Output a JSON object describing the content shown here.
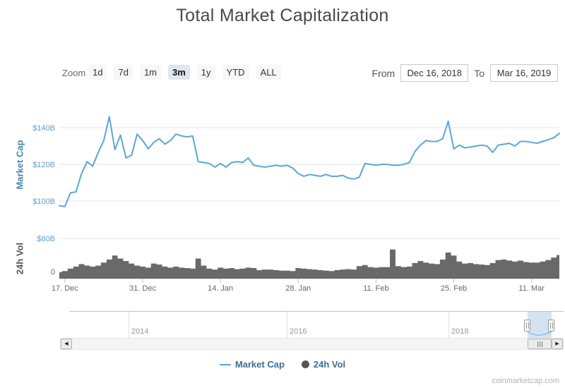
{
  "title": "Total Market Capitalization",
  "toolbar": {
    "zoom_label": "Zoom",
    "ranges": [
      {
        "label": "1d",
        "selected": false
      },
      {
        "label": "7d",
        "selected": false
      },
      {
        "label": "1m",
        "selected": false
      },
      {
        "label": "3m",
        "selected": true
      },
      {
        "label": "1y",
        "selected": false
      },
      {
        "label": "YTD",
        "selected": false
      },
      {
        "label": "ALL",
        "selected": false
      }
    ],
    "from_label": "From",
    "from_value": "Dec 16, 2018",
    "to_label": "To",
    "to_value": "Mar 16, 2019"
  },
  "axes": {
    "marketcap_title": "Market Cap",
    "volume_title": "24h Vol"
  },
  "legend": [
    {
      "label": "Market Cap",
      "marker": "line",
      "color": "#58a7d9"
    },
    {
      "label": "24h Vol",
      "marker": "circle",
      "color": "#555555"
    }
  ],
  "navigator": {
    "years": [
      {
        "label": "2014"
      },
      {
        "label": "2016"
      },
      {
        "label": "2018"
      }
    ]
  },
  "watermark": "coinmarketcap.com",
  "colors": {
    "line": "#58a7d9",
    "volume": "#696969",
    "grid": "#e6e6e6",
    "axis_line": "#d0d0d0",
    "tick": "#c0c0c0",
    "x_label": "#666666",
    "y_label_blue": "#5e9fc7",
    "y_label_gray": "#666666"
  },
  "chart_data": {
    "type": "line",
    "title": "Total Market Capitalization",
    "x_unit": "day",
    "start_date": "2018-12-16",
    "end_date": "2019-03-16",
    "x_ticks": [
      {
        "label": "17. Dec",
        "day": 1
      },
      {
        "label": "31. Dec",
        "day": 15
      },
      {
        "label": "14. Jan",
        "day": 29
      },
      {
        "label": "28. Jan",
        "day": 43
      },
      {
        "label": "11. Feb",
        "day": 57
      },
      {
        "label": "25. Feb",
        "day": 71
      },
      {
        "label": "11. Mar",
        "day": 85
      }
    ],
    "marketcap_axis": {
      "ticks": [
        {
          "label": "$140B",
          "value": 140
        },
        {
          "label": "$120B",
          "value": 120
        },
        {
          "label": "$100B",
          "value": 100
        }
      ],
      "range": [
        95,
        150
      ]
    },
    "volume_axis": {
      "ticks": [
        {
          "label": "$80B",
          "value": 80
        },
        {
          "label": "0",
          "value": 0
        }
      ],
      "range": [
        0,
        80
      ]
    },
    "series": [
      {
        "name": "Market Cap",
        "type": "line",
        "unit": "billion USD",
        "color": "#58a7d9",
        "values": [
          97.5,
          97.0,
          104.5,
          105.0,
          115.0,
          121.5,
          119.0,
          126.5,
          133.0,
          146.0,
          128.0,
          136.0,
          123.5,
          125.0,
          136.5,
          133.0,
          128.5,
          132.0,
          134.0,
          131.0,
          133.0,
          136.5,
          135.5,
          135.0,
          135.5,
          121.5,
          121.0,
          120.5,
          118.5,
          120.5,
          118.5,
          121.0,
          121.5,
          121.0,
          123.5,
          119.5,
          119.0,
          118.5,
          119.0,
          119.5,
          119.0,
          119.5,
          118.0,
          115.0,
          113.5,
          114.5,
          114.0,
          113.5,
          114.5,
          113.5,
          113.5,
          114.0,
          112.5,
          112.0,
          113.0,
          120.5,
          120.0,
          119.5,
          120.0,
          120.0,
          119.5,
          119.5,
          120.0,
          121.0,
          127.0,
          130.5,
          133.0,
          132.5,
          132.5,
          134.0,
          143.5,
          128.5,
          130.5,
          129.0,
          129.5,
          130.0,
          130.5,
          130.0,
          126.5,
          130.5,
          131.0,
          131.5,
          130.0,
          132.5,
          132.5,
          132.0,
          131.5,
          132.5,
          133.5,
          134.5,
          137.0
        ]
      },
      {
        "name": "24h Vol",
        "type": "column",
        "unit": "billion USD",
        "color": "#696969",
        "values": [
          13,
          15,
          20,
          24,
          29,
          26,
          24,
          26,
          32,
          38,
          46,
          40,
          35,
          30,
          26,
          24,
          22,
          30,
          28,
          24,
          22,
          24,
          22,
          21,
          20,
          40,
          26,
          20,
          18,
          22,
          20,
          21,
          19,
          20,
          22,
          21,
          17,
          18,
          18,
          17,
          16,
          16,
          15,
          21,
          20,
          19,
          18,
          17,
          16,
          15,
          17,
          18,
          19,
          18,
          25,
          27,
          23,
          22,
          23,
          23,
          58,
          25,
          23,
          24,
          31,
          35,
          32,
          30,
          29,
          38,
          52,
          46,
          34,
          30,
          31,
          29,
          28,
          27,
          31,
          37,
          38,
          36,
          34,
          36,
          33,
          32,
          32,
          34,
          37,
          42,
          47
        ]
      }
    ],
    "navigator_year_ticks": [
      "2014",
      "2016",
      "2018"
    ],
    "legend_position": "bottom-center",
    "grid": true
  }
}
